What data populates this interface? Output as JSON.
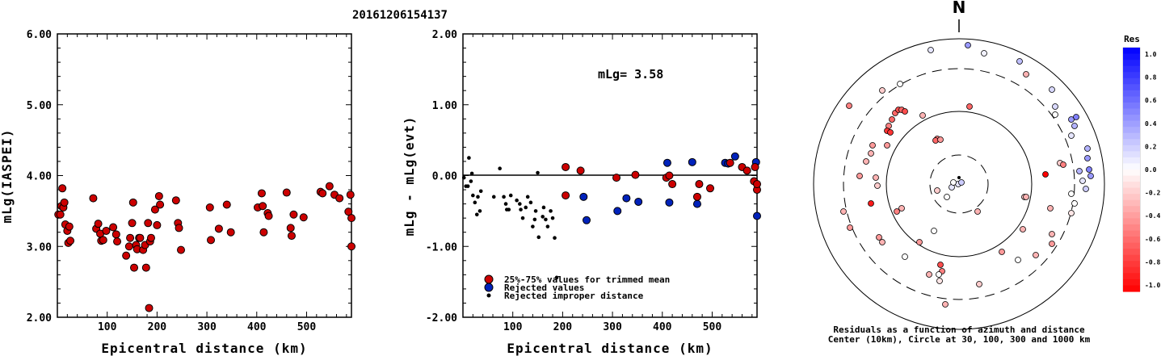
{
  "title": "20161206154137",
  "colors": {
    "used": "#cc0000",
    "rejected": "#0022bb",
    "improper": "#000000"
  },
  "chart_data": [
    {
      "type": "scatter",
      "name": "left-plot",
      "ylabel": "mLg(IASPEI)",
      "xlabel": "Epicentral distance (km)",
      "xlim": [
        0,
        590
      ],
      "ylim": [
        2.0,
        6.0
      ],
      "x_ticks": [
        100,
        200,
        300,
        400,
        500
      ],
      "y_ticks": [
        "2.00",
        "3.00",
        "4.00",
        "5.00",
        "6.00"
      ],
      "points": [
        [
          2,
          3.45
        ],
        [
          6,
          3.45
        ],
        [
          8,
          3.57
        ],
        [
          10,
          3.82
        ],
        [
          12,
          3.55
        ],
        [
          14,
          3.62
        ],
        [
          16,
          3.31
        ],
        [
          20,
          3.22
        ],
        [
          22,
          3.05
        ],
        [
          24,
          3.28
        ],
        [
          26,
          3.08
        ],
        [
          72,
          3.68
        ],
        [
          78,
          3.25
        ],
        [
          82,
          3.32
        ],
        [
          86,
          3.18
        ],
        [
          88,
          3.08
        ],
        [
          92,
          3.09
        ],
        [
          98,
          3.22
        ],
        [
          112,
          3.27
        ],
        [
          118,
          3.17
        ],
        [
          120,
          3.07
        ],
        [
          138,
          2.87
        ],
        [
          144,
          3.0
        ],
        [
          146,
          3.12
        ],
        [
          150,
          3.33
        ],
        [
          152,
          3.62
        ],
        [
          154,
          2.7
        ],
        [
          158,
          3.02
        ],
        [
          160,
          2.96
        ],
        [
          164,
          3.12
        ],
        [
          166,
          3.12
        ],
        [
          172,
          2.95
        ],
        [
          176,
          3.02
        ],
        [
          178,
          2.7
        ],
        [
          182,
          3.33
        ],
        [
          184,
          2.13
        ],
        [
          186,
          3.07
        ],
        [
          188,
          3.12
        ],
        [
          196,
          3.52
        ],
        [
          200,
          3.3
        ],
        [
          204,
          3.71
        ],
        [
          206,
          3.59
        ],
        [
          238,
          3.65
        ],
        [
          242,
          3.33
        ],
        [
          244,
          3.26
        ],
        [
          248,
          2.95
        ],
        [
          306,
          3.55
        ],
        [
          308,
          3.09
        ],
        [
          324,
          3.25
        ],
        [
          340,
          3.59
        ],
        [
          348,
          3.2
        ],
        [
          402,
          3.55
        ],
        [
          410,
          3.75
        ],
        [
          412,
          3.57
        ],
        [
          414,
          3.2
        ],
        [
          422,
          3.47
        ],
        [
          424,
          3.43
        ],
        [
          460,
          3.76
        ],
        [
          468,
          3.26
        ],
        [
          470,
          3.15
        ],
        [
          474,
          3.45
        ],
        [
          494,
          3.41
        ],
        [
          528,
          3.77
        ],
        [
          532,
          3.75
        ],
        [
          546,
          3.85
        ],
        [
          556,
          3.73
        ],
        [
          566,
          3.68
        ],
        [
          584,
          3.49
        ],
        [
          588,
          3.73
        ],
        [
          590,
          3.4
        ],
        [
          590,
          3.0
        ]
      ]
    },
    {
      "type": "scatter",
      "name": "middle-plot",
      "ylabel": "mLg - mLg(evt)",
      "xlabel": "Epicentral distance (km)",
      "xlim": [
        0,
        590
      ],
      "ylim": [
        -2.0,
        2.0
      ],
      "x_ticks": [
        100,
        200,
        300,
        400,
        500
      ],
      "y_ticks": [
        "-2.00",
        "-1.00",
        "0.00",
        "1.00",
        "2.00"
      ],
      "annotation": "mLg= 3.58",
      "legend": [
        "25%-75% values for trimmed mean",
        "Rejected values",
        "Rejected improper distance"
      ],
      "used": [
        [
          206,
          0.12
        ],
        [
          206,
          -0.28
        ],
        [
          236,
          0.07
        ],
        [
          308,
          -0.03
        ],
        [
          346,
          0.01
        ],
        [
          408,
          -0.03
        ],
        [
          414,
          0.0
        ],
        [
          420,
          -0.12
        ],
        [
          470,
          -0.3
        ],
        [
          474,
          -0.12
        ],
        [
          496,
          -0.18
        ],
        [
          536,
          0.18
        ],
        [
          560,
          0.12
        ],
        [
          570,
          0.07
        ],
        [
          584,
          -0.08
        ],
        [
          586,
          0.12
        ],
        [
          590,
          -0.2
        ],
        [
          590,
          -0.12
        ]
      ],
      "rejected": [
        [
          242,
          -0.3
        ],
        [
          248,
          -0.63
        ],
        [
          310,
          -0.5
        ],
        [
          328,
          -0.32
        ],
        [
          352,
          -0.37
        ],
        [
          410,
          0.18
        ],
        [
          414,
          -0.38
        ],
        [
          460,
          0.19
        ],
        [
          470,
          -0.4
        ],
        [
          526,
          0.18
        ],
        [
          532,
          0.17
        ],
        [
          546,
          0.27
        ],
        [
          588,
          0.19
        ],
        [
          590,
          -0.57
        ]
      ],
      "improper": [
        [
          2,
          -0.03
        ],
        [
          6,
          -0.15
        ],
        [
          10,
          -0.15
        ],
        [
          12,
          0.25
        ],
        [
          16,
          -0.08
        ],
        [
          18,
          0.03
        ],
        [
          20,
          -0.28
        ],
        [
          24,
          -0.38
        ],
        [
          28,
          -0.55
        ],
        [
          30,
          -0.3
        ],
        [
          34,
          -0.5
        ],
        [
          36,
          -0.22
        ],
        [
          62,
          -0.3
        ],
        [
          74,
          0.1
        ],
        [
          82,
          -0.3
        ],
        [
          86,
          -0.4
        ],
        [
          88,
          -0.48
        ],
        [
          92,
          -0.48
        ],
        [
          96,
          -0.28
        ],
        [
          108,
          -0.35
        ],
        [
          114,
          -0.4
        ],
        [
          116,
          -0.48
        ],
        [
          120,
          -0.6
        ],
        [
          126,
          -0.45
        ],
        [
          130,
          -0.3
        ],
        [
          136,
          -0.38
        ],
        [
          140,
          -0.72
        ],
        [
          144,
          -0.62
        ],
        [
          146,
          -0.5
        ],
        [
          150,
          0.04
        ],
        [
          152,
          -0.87
        ],
        [
          160,
          -0.58
        ],
        [
          162,
          -0.45
        ],
        [
          166,
          -0.62
        ],
        [
          170,
          -0.72
        ],
        [
          176,
          -0.5
        ],
        [
          180,
          -0.6
        ],
        [
          184,
          -0.88
        ],
        [
          188,
          -1.44
        ]
      ]
    },
    {
      "type": "scatter",
      "name": "polar-plot",
      "north_label": "N",
      "caption_line1": "Residuals as a function of azimuth and distance",
      "caption_line2": "Center (10km), Circle at 30, 100, 300 and 1000 km",
      "colorbar_title": "Res",
      "colorbar_ticks": [
        "1.0",
        "0.8",
        "0.6",
        "0.4",
        "0.2",
        "0.0",
        "-0.2",
        "-0.4",
        "-0.6",
        "-0.8",
        "-1.0"
      ],
      "center": [
        1187,
        228
      ],
      "rings": [
        {
          "r": 36,
          "dashed": true
        },
        {
          "r": 90,
          "dashed": false
        },
        {
          "r": 143,
          "dashed": true
        },
        {
          "r": 180,
          "dashed": false
        }
      ],
      "points": [
        [
          1198,
          56,
          0.4
        ],
        [
          1218,
          66,
          0.05
        ],
        [
          1262,
          76,
          0.25
        ],
        [
          1152,
          62,
          0.1
        ],
        [
          1270,
          92,
          -0.3
        ],
        [
          1302,
          111,
          0.15
        ],
        [
          1114,
          104,
          0.0
        ],
        [
          1092,
          112,
          -0.2
        ],
        [
          1051,
          131,
          -0.5
        ],
        [
          1200,
          132,
          -0.6
        ],
        [
          1306,
          132,
          0.15
        ],
        [
          1306,
          142,
          0.0
        ],
        [
          1326,
          148,
          0.4
        ],
        [
          1332,
          145,
          0.5
        ],
        [
          1330,
          156,
          0.3
        ],
        [
          1326,
          168,
          0.1
        ],
        [
          1108,
          140,
          -0.6
        ],
        [
          1112,
          136,
          -0.7
        ],
        [
          1116,
          136,
          -0.6
        ],
        [
          1120,
          138,
          -0.7
        ],
        [
          1104,
          148,
          -0.6
        ],
        [
          1142,
          143,
          -0.3
        ],
        [
          1100,
          156,
          -0.5
        ],
        [
          1098,
          162,
          -0.8
        ],
        [
          1102,
          164,
          -0.8
        ],
        [
          1160,
          172,
          -0.5
        ],
        [
          1158,
          174,
          -0.6
        ],
        [
          1164,
          173,
          -0.4
        ],
        [
          1080,
          180,
          -0.4
        ],
        [
          1078,
          190,
          -0.3
        ],
        [
          1098,
          180,
          -0.4
        ],
        [
          1072,
          200,
          -0.3
        ],
        [
          1064,
          218,
          -0.4
        ],
        [
          1084,
          220,
          -0.3
        ],
        [
          1078,
          252,
          -0.9
        ],
        [
          1086,
          230,
          -0.2
        ],
        [
          1346,
          184,
          0.3
        ],
        [
          1346,
          196,
          0.4
        ],
        [
          1348,
          210,
          0.5
        ],
        [
          1350,
          218,
          0.4
        ],
        [
          1336,
          212,
          0.3
        ],
        [
          1344,
          234,
          0.2
        ],
        [
          1312,
          202,
          -0.2
        ],
        [
          1316,
          204,
          -0.5
        ],
        [
          1294,
          216,
          -1.0
        ],
        [
          1340,
          224,
          0.1
        ],
        [
          1330,
          252,
          0.0
        ],
        [
          1326,
          264,
          -0.1
        ],
        [
          1300,
          258,
          -0.3
        ],
        [
          1268,
          244,
          -0.2
        ],
        [
          1270,
          244,
          -0.3
        ],
        [
          1186,
          228,
          0.1
        ],
        [
          1178,
          232,
          0.1
        ],
        [
          1190,
          226,
          0.2
        ],
        [
          1180,
          226,
          0.0
        ],
        [
          1172,
          244,
          0.0
        ],
        [
          1160,
          236,
          -0.2
        ],
        [
          1210,
          262,
          -0.3
        ],
        [
          1044,
          262,
          -0.3
        ],
        [
          1052,
          282,
          -0.4
        ],
        [
          1088,
          294,
          -0.4
        ],
        [
          1092,
          300,
          -0.3
        ],
        [
          1138,
          300,
          -0.4
        ],
        [
          1110,
          262,
          -0.5
        ],
        [
          1116,
          258,
          -0.3
        ],
        [
          1120,
          318,
          0.0
        ],
        [
          1156,
          286,
          0.0
        ],
        [
          1164,
          328,
          -0.7
        ],
        [
          1166,
          336,
          -0.5
        ],
        [
          1150,
          340,
          -0.3
        ],
        [
          1162,
          340,
          0.0
        ],
        [
          1163,
          348,
          -0.1
        ],
        [
          1170,
          377,
          -0.3
        ],
        [
          1302,
          290,
          -0.3
        ],
        [
          1302,
          302,
          -0.4
        ],
        [
          1282,
          316,
          -0.3
        ],
        [
          1260,
          322,
          0.0
        ],
        [
          1240,
          312,
          -0.4
        ],
        [
          1212,
          352,
          -0.2
        ],
        [
          1266,
          284,
          -0.3
        ],
        [
          1326,
          240,
          0.0
        ]
      ]
    }
  ]
}
